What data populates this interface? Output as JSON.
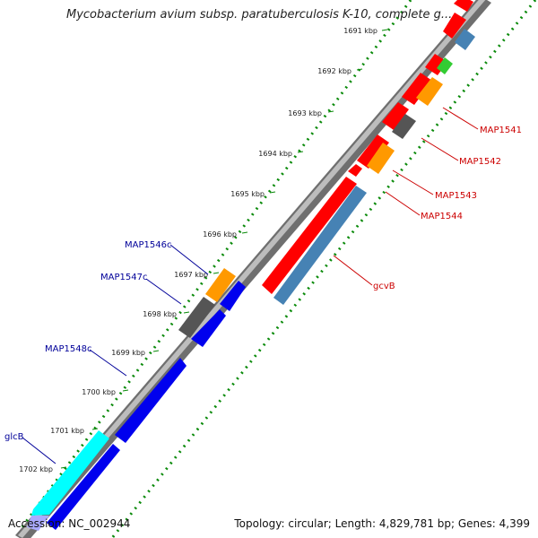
{
  "map": {
    "title": "Mycobacterium avium subsp. paratuberculosis K-10, complete g...",
    "accession": "Accession: NC_002944",
    "topology": "Topology: circular; Length: 4,829,781 bp; Genes: 4,399",
    "ticks": [
      "1691 kbp",
      "1692 kbp",
      "1693 kbp",
      "1694 kbp",
      "1695 kbp",
      "1696 kbp",
      "1697 kbp",
      "1698 kbp",
      "1699 kbp",
      "1700 kbp",
      "1701 kbp",
      "1702 kbp"
    ],
    "forward_gene_labels": [
      "MAP1541",
      "MAP1542",
      "MAP1543",
      "MAP1544",
      "gcvB"
    ],
    "reverse_gene_labels": [
      "MAP1546c",
      "MAP1547c",
      "MAP1548c",
      "glcB"
    ],
    "colors": {
      "forward_label": "#cc0000",
      "reverse_label": "#000099",
      "ticks": "#008000",
      "backbone": "#888888",
      "red": "#ff0000",
      "orange": "#ff9900",
      "green": "#33cc33",
      "gray": "#666666",
      "steelblue": "#4682b4",
      "blue": "#0000ee",
      "cyan": "#00ffff"
    }
  }
}
